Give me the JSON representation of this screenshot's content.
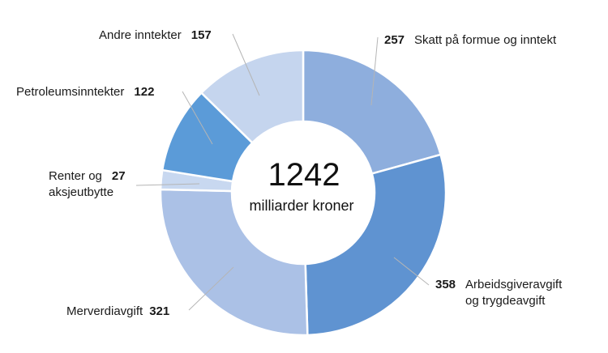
{
  "chart_data": {
    "type": "pie",
    "total": "1242",
    "total_unit": "milliarder kroner",
    "slices": [
      {
        "label": [
          "Skatt på formue og inntekt"
        ],
        "value": 257,
        "color": "#8eaedd"
      },
      {
        "label": [
          "Arbeidsgiveravgift",
          "og trygdeavgift"
        ],
        "value": 358,
        "color": "#5f93d1"
      },
      {
        "label": [
          "Merverdiavgift"
        ],
        "value": 321,
        "color": "#abc1e6"
      },
      {
        "label": [
          "Renter og",
          "aksjeutbytte"
        ],
        "value": 27,
        "color": "#c8d8f0"
      },
      {
        "label": [
          "Petroleumsinntekter"
        ],
        "value": 122,
        "color": "#5b9bd8"
      },
      {
        "label": [
          "Andre inntekter"
        ],
        "value": 157,
        "color": "#c5d5ee"
      }
    ]
  }
}
